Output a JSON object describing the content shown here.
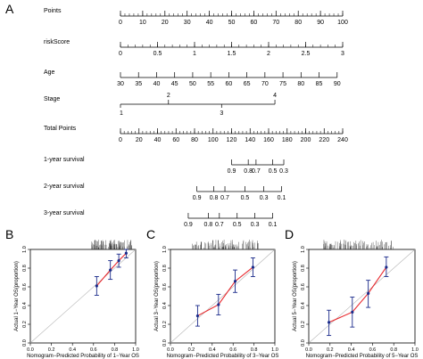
{
  "panel_labels": [
    "A",
    "B",
    "C",
    "D"
  ],
  "nomogram": {
    "rows": [
      {
        "label": "Points",
        "kind": "scale",
        "range": [
          0,
          100
        ],
        "labels": [
          0,
          10,
          20,
          30,
          40,
          50,
          60,
          70,
          80,
          90,
          100
        ],
        "minor": 5
      },
      {
        "label": "riskScore",
        "kind": "scale",
        "range": [
          0,
          3
        ],
        "labels": [
          0,
          0.5,
          1,
          1.5,
          2,
          2.5,
          3
        ],
        "minor": 5
      },
      {
        "label": "Age",
        "kind": "scale",
        "range": [
          30,
          90
        ],
        "labels": [
          30,
          35,
          40,
          45,
          50,
          55,
          60,
          65,
          70,
          75,
          80,
          85,
          90
        ],
        "minor": 0
      },
      {
        "label": "Stage",
        "kind": "stage",
        "upper": [
          {
            "v": "2",
            "p": 21.6
          },
          {
            "v": "4",
            "p": 69.5
          }
        ],
        "lower": [
          {
            "v": "1",
            "p": 0
          },
          {
            "v": "3",
            "p": 45.5
          }
        ]
      },
      {
        "label": "Total Points",
        "kind": "scale",
        "range": [
          0,
          240
        ],
        "labels": [
          0,
          20,
          40,
          60,
          80,
          100,
          120,
          140,
          160,
          180,
          200,
          220,
          240
        ],
        "minor": 5
      },
      {
        "label": "1-year survival",
        "kind": "prob",
        "labels": [
          "0.9",
          "0.8",
          "0.7",
          "0.5",
          "0.3"
        ],
        "pos": [
          50.0,
          57.5,
          61.0,
          68.5,
          73.5
        ]
      },
      {
        "label": "2-year survival",
        "kind": "prob",
        "labels": [
          "0.9",
          "0.8",
          "0.7",
          "0.5",
          "0.3",
          "0.1"
        ],
        "pos": [
          34.4,
          42.0,
          47.0,
          56.0,
          64.5,
          72.5
        ]
      },
      {
        "label": "3-year survival",
        "kind": "prob",
        "labels": [
          "0.9",
          "0.8",
          "0.7",
          "0.5",
          "0.3",
          "0.1"
        ],
        "pos": [
          30.5,
          39.5,
          44.5,
          52.5,
          60.5,
          68.5
        ]
      }
    ]
  },
  "chart_data": [
    {
      "type": "line",
      "panel": "B",
      "xlabel": "Nomogram−Predicted Probability of 1−Year OS",
      "ylabel": "Actual 1−Year OS(proportion)",
      "xlim": [
        0,
        1
      ],
      "ylim": [
        0,
        1
      ],
      "ticks": [
        "0.0",
        "0.2",
        "0.4",
        "0.6",
        "0.8",
        "1.0"
      ],
      "series": [
        {
          "x": [
            0.63,
            0.76,
            0.84,
            0.91
          ],
          "y": [
            0.61,
            0.78,
            0.88,
            0.96
          ],
          "lo": [
            0.51,
            0.68,
            0.81,
            0.91
          ],
          "hi": [
            0.71,
            0.88,
            0.95,
            1.0
          ]
        }
      ]
    },
    {
      "type": "line",
      "panel": "C",
      "xlabel": "Nomogram−Predicted Probability of 3−Year OS",
      "ylabel": "Actual 3−Year OS(proportion)",
      "xlim": [
        0,
        1
      ],
      "ylim": [
        0,
        1
      ],
      "ticks": [
        "0.0",
        "0.2",
        "0.4",
        "0.6",
        "0.8",
        "1.0"
      ],
      "series": [
        {
          "x": [
            0.26,
            0.46,
            0.62,
            0.79
          ],
          "y": [
            0.29,
            0.41,
            0.66,
            0.81
          ],
          "lo": [
            0.18,
            0.3,
            0.54,
            0.71
          ],
          "hi": [
            0.4,
            0.52,
            0.78,
            0.91
          ]
        }
      ]
    },
    {
      "type": "line",
      "panel": "D",
      "xlabel": "Nomogram−Predicted Probability of 5−Year OS",
      "ylabel": "Actual 5−Year OS(proportion)",
      "xlim": [
        0,
        1
      ],
      "ylim": [
        0,
        1
      ],
      "ticks": [
        "0.0",
        "0.2",
        "0.4",
        "0.6",
        "0.8",
        "1.0"
      ],
      "series": [
        {
          "x": [
            0.19,
            0.41,
            0.56,
            0.73
          ],
          "y": [
            0.22,
            0.33,
            0.53,
            0.81
          ],
          "lo": [
            0.08,
            0.17,
            0.38,
            0.71
          ],
          "hi": [
            0.35,
            0.49,
            0.67,
            0.92
          ]
        }
      ]
    }
  ]
}
